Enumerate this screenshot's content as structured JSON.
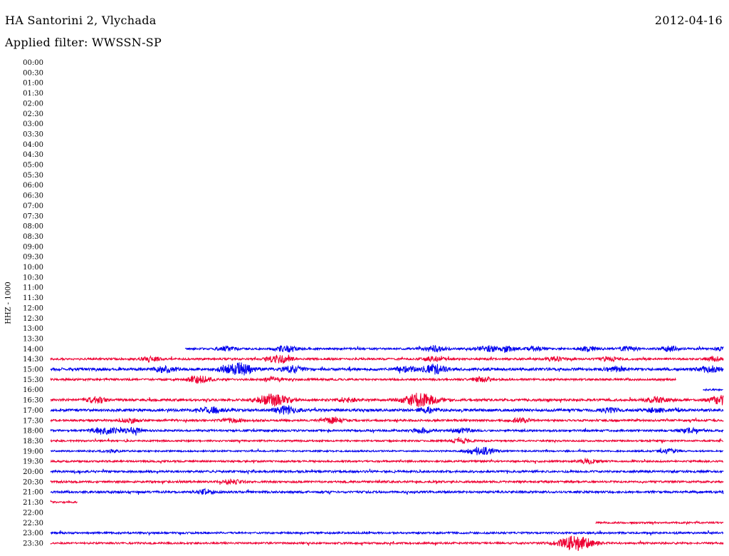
{
  "header": {
    "station": "HA Santorini 2, Vlychada",
    "filter": "Applied filter: WWSSN-SP",
    "date": "2012-04-16"
  },
  "channel_label": "HHZ - 1000",
  "colors": {
    "even": "#0000ee",
    "odd": "#ee0033"
  },
  "chart_data": {
    "type": "line",
    "title": "HA Santorini 2, Vlychada",
    "subtitle": "Applied filter: WWSSN-SP",
    "ylabel": "HHZ - 1000",
    "row_labels": [
      "00:00",
      "00:30",
      "01:00",
      "01:30",
      "02:00",
      "02:30",
      "03:00",
      "03:30",
      "04:00",
      "04:30",
      "05:00",
      "05:30",
      "06:00",
      "06:30",
      "07:00",
      "07:30",
      "08:00",
      "08:30",
      "09:00",
      "09:30",
      "10:00",
      "10:30",
      "11:00",
      "11:30",
      "12:00",
      "12:30",
      "13:00",
      "13:30",
      "14:00",
      "14:30",
      "15:00",
      "15:30",
      "16:00",
      "16:30",
      "17:00",
      "17:30",
      "18:00",
      "18:30",
      "19:00",
      "19:30",
      "20:00",
      "20:30",
      "21:00",
      "21:30",
      "22:00",
      "22:30",
      "23:00",
      "23:30"
    ],
    "x_range_minutes": [
      0,
      30
    ],
    "traces": [
      {
        "row": "14:00",
        "start": 0.2,
        "end": 1.0,
        "noise": 1.4,
        "bursts": [
          [
            0.26,
            3
          ],
          [
            0.35,
            4
          ],
          [
            0.57,
            4
          ],
          [
            0.65,
            4
          ],
          [
            0.68,
            3
          ],
          [
            0.72,
            3
          ],
          [
            0.8,
            3
          ],
          [
            0.86,
            3
          ],
          [
            0.92,
            3
          ],
          [
            1.0,
            2
          ]
        ]
      },
      {
        "row": "14:30",
        "start": 0.0,
        "end": 1.0,
        "noise": 1.4,
        "bursts": [
          [
            0.15,
            3
          ],
          [
            0.34,
            5
          ],
          [
            0.57,
            3
          ],
          [
            0.75,
            3
          ],
          [
            0.83,
            3
          ],
          [
            0.99,
            3
          ]
        ]
      },
      {
        "row": "15:00",
        "start": 0.0,
        "end": 1.0,
        "noise": 1.8,
        "bursts": [
          [
            0.17,
            4
          ],
          [
            0.28,
            8
          ],
          [
            0.36,
            4
          ],
          [
            0.53,
            3
          ],
          [
            0.57,
            6
          ],
          [
            0.84,
            3
          ],
          [
            0.98,
            4
          ]
        ]
      },
      {
        "row": "15:30",
        "start": 0.0,
        "end": 0.93,
        "noise": 1.4,
        "bursts": [
          [
            0.22,
            5
          ],
          [
            0.33,
            3
          ],
          [
            0.64,
            3
          ]
        ]
      },
      {
        "row": "16:00",
        "start": 0.97,
        "end": 1.0,
        "noise": 1.2,
        "bursts": []
      },
      {
        "row": "16:30",
        "start": 0.0,
        "end": 1.0,
        "noise": 1.6,
        "bursts": [
          [
            0.07,
            4
          ],
          [
            0.33,
            8
          ],
          [
            0.44,
            3
          ],
          [
            0.55,
            9
          ],
          [
            0.9,
            4
          ],
          [
            1.0,
            6
          ]
        ]
      },
      {
        "row": "17:00",
        "start": 0.0,
        "end": 1.0,
        "noise": 1.8,
        "bursts": [
          [
            0.24,
            4
          ],
          [
            0.35,
            5
          ],
          [
            0.56,
            3
          ],
          [
            0.83,
            3
          ],
          [
            0.9,
            3
          ]
        ]
      },
      {
        "row": "17:30",
        "start": 0.0,
        "end": 1.0,
        "noise": 1.4,
        "bursts": [
          [
            0.12,
            3
          ],
          [
            0.27,
            3
          ],
          [
            0.42,
            4
          ],
          [
            0.7,
            3
          ]
        ]
      },
      {
        "row": "18:00",
        "start": 0.0,
        "end": 1.0,
        "noise": 1.4,
        "bursts": [
          [
            0.08,
            5
          ],
          [
            0.12,
            4
          ],
          [
            0.55,
            3
          ],
          [
            0.61,
            3
          ],
          [
            0.95,
            3
          ]
        ]
      },
      {
        "row": "18:30",
        "start": 0.0,
        "end": 1.0,
        "noise": 1.2,
        "bursts": [
          [
            0.61,
            3
          ]
        ]
      },
      {
        "row": "19:00",
        "start": 0.0,
        "end": 1.0,
        "noise": 1.1,
        "bursts": [
          [
            0.09,
            2
          ],
          [
            0.64,
            6
          ],
          [
            0.92,
            3
          ]
        ]
      },
      {
        "row": "19:30",
        "start": 0.0,
        "end": 1.0,
        "noise": 1.3,
        "bursts": [
          [
            0.8,
            3
          ]
        ]
      },
      {
        "row": "20:00",
        "start": 0.0,
        "end": 1.0,
        "noise": 1.5,
        "bursts": []
      },
      {
        "row": "20:30",
        "start": 0.0,
        "end": 1.0,
        "noise": 1.4,
        "bursts": [
          [
            0.27,
            3
          ]
        ]
      },
      {
        "row": "21:00",
        "start": 0.0,
        "end": 1.0,
        "noise": 1.5,
        "bursts": [
          [
            0.23,
            3
          ]
        ]
      },
      {
        "row": "21:30",
        "start": 0.0,
        "end": 0.04,
        "noise": 1.2,
        "bursts": []
      },
      {
        "row": "22:30",
        "start": 0.81,
        "end": 1.0,
        "noise": 1.2,
        "bursts": []
      },
      {
        "row": "23:00",
        "start": 0.0,
        "end": 1.0,
        "noise": 1.3,
        "bursts": []
      },
      {
        "row": "23:30",
        "start": 0.0,
        "end": 1.0,
        "noise": 1.3,
        "bursts": [
          [
            0.78,
            10
          ]
        ]
      }
    ]
  }
}
